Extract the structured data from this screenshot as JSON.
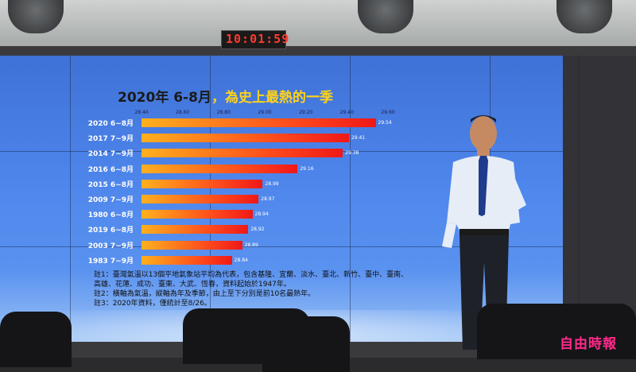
{
  "clock": "10:01:59",
  "chart_data": {
    "type": "bar",
    "orientation": "horizontal",
    "title_lead": "2020年 6-8月",
    "title_highlight": "，為史上最熱的一季",
    "xlim": [
      28.4,
      29.6
    ],
    "x_ticks": [
      "28.40",
      "28.60",
      "28.80",
      "29.00",
      "29.20",
      "29.40",
      "29.60"
    ],
    "categories": [
      "2020 6~8月",
      "2017 7~9月",
      "2014 7~9月",
      "2016 6~8月",
      "2015 6~8月",
      "2009 7~9月",
      "1980 6~8月",
      "2019 6~8月",
      "2003 7~9月",
      "1983 7~9月"
    ],
    "values": [
      29.54,
      29.41,
      29.38,
      29.16,
      28.99,
      28.97,
      28.94,
      28.92,
      28.89,
      28.84
    ],
    "value_labels": [
      "29.54",
      "29.41",
      "29.38",
      "29.16",
      "28.99",
      "28.97",
      "28.94",
      "28.92",
      "28.89",
      "28.84"
    ],
    "bar_colors": [
      "#ffb01e",
      "#f01818"
    ]
  },
  "notes": [
    "註1：臺灣氣溫以13個平地氣象站平均為代表，包含基隆、宜蘭、淡水、臺北、新竹、臺中、臺南、",
    "高雄、花蓮、成功、臺東、大武、恆春，資料起始於1947年。",
    "註2：橫軸為氣溫，縱軸為年及季節，由上至下分別是前10名最熱年。",
    "註3：2020年資料，僅統計至8/26。"
  ],
  "watermark": "自由時報"
}
